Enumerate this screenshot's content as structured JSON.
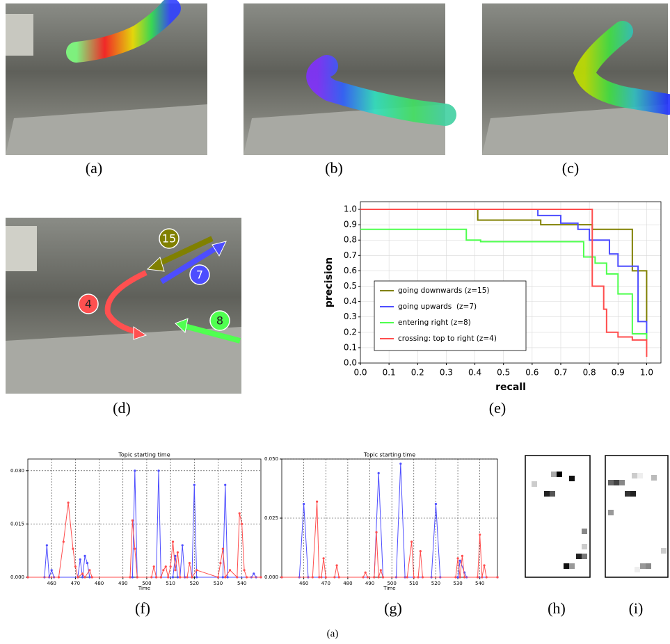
{
  "labels": [
    "(a)",
    "(b)",
    "(c)",
    "(d)",
    "(e)",
    "(f)",
    "(g)",
    "(h)",
    "(i)"
  ],
  "caption": "(a)",
  "scene_annotations": [
    "15",
    "7",
    "4",
    "8"
  ],
  "chart_data": [
    {
      "type": "line",
      "step": true,
      "x_label": "recall",
      "y_label": "precision",
      "grid": true,
      "legend": "lower left",
      "xlim": [
        0,
        1.05
      ],
      "ylim": [
        0,
        1.05
      ],
      "xticks": [
        {
          "value": 0,
          "label": "0.0"
        },
        {
          "value": 0.1,
          "label": "0.1"
        },
        {
          "value": 0.2,
          "label": "0.2"
        },
        {
          "value": 0.3,
          "label": "0.3"
        },
        {
          "value": 0.4,
          "label": "0.4"
        },
        {
          "value": 0.5,
          "label": "0.5"
        },
        {
          "value": 0.6,
          "label": "0.6"
        },
        {
          "value": 0.7,
          "label": "0.7"
        },
        {
          "value": 0.8,
          "label": "0.8"
        },
        {
          "value": 0.9,
          "label": "0.9"
        },
        {
          "value": 1,
          "label": "1.0"
        }
      ],
      "yticks": [
        {
          "value": 0,
          "label": "0.0"
        },
        {
          "value": 0.1,
          "label": "0.1"
        },
        {
          "value": 0.2,
          "label": "0.2"
        },
        {
          "value": 0.3,
          "label": "0.3"
        },
        {
          "value": 0.4,
          "label": "0.4"
        },
        {
          "value": 0.5,
          "label": "0.5"
        },
        {
          "value": 0.6,
          "label": "0.6"
        },
        {
          "value": 0.7,
          "label": "0.7"
        },
        {
          "value": 0.8,
          "label": "0.8"
        },
        {
          "value": 0.9,
          "label": "0.9"
        },
        {
          "value": 1,
          "label": "1.0"
        }
      ],
      "series": [
        {
          "name": "going downwards (z=15)",
          "color": "#808000",
          "x": [
            0.04,
            0.41,
            0.63,
            0.81,
            0.95,
            1.0
          ],
          "values": [
            1.0,
            0.93,
            0.9,
            0.87,
            0.6,
            0.27
          ]
        },
        {
          "name": "going upwards  (z=7)",
          "color": "#4d4dff",
          "x": [
            0.04,
            0.62,
            0.7,
            0.76,
            0.8,
            0.87,
            0.9,
            0.97,
            1.0
          ],
          "values": [
            1.0,
            0.96,
            0.91,
            0.87,
            0.8,
            0.71,
            0.63,
            0.27,
            0.15
          ]
        },
        {
          "name": "entering right (z=8)",
          "color": "#4dff4d",
          "x": [
            0,
            0.37,
            0.42,
            0.78,
            0.82,
            0.86,
            0.9,
            0.95,
            1.0
          ],
          "values": [
            0.87,
            0.8,
            0.79,
            0.69,
            0.65,
            0.58,
            0.45,
            0.19,
            0.15
          ]
        },
        {
          "name": "crossing: top to right (z=4)",
          "color": "#ff4d4d",
          "x": [
            0,
            0.81,
            0.85,
            0.86,
            0.9,
            0.95,
            1.0
          ],
          "values": [
            1.0,
            0.5,
            0.35,
            0.2,
            0.17,
            0.15,
            0.04
          ]
        }
      ]
    },
    {
      "type": "line",
      "title": "Topic starting time",
      "x_label": "Time",
      "grid": true,
      "markers": true,
      "xlim": [
        450,
        548
      ],
      "ylim": [
        0,
        0.0333
      ],
      "xticks": [
        460,
        470,
        480,
        490,
        500,
        510,
        520,
        530,
        540
      ],
      "yticks": [
        {
          "value": 0,
          "label": "0.000"
        },
        {
          "value": 0.015,
          "label": "0.015"
        },
        {
          "value": 0.03,
          "label": "0.030"
        }
      ],
      "series": [
        {
          "color": "#4d4dff",
          "x": [
            450,
            457,
            458,
            459,
            460,
            461,
            471,
            472,
            473,
            474,
            475,
            476,
            494,
            495,
            496,
            504,
            505,
            506,
            511,
            512,
            513,
            514,
            515,
            516,
            519,
            520,
            521,
            532,
            533,
            534,
            544,
            545,
            546,
            548
          ],
          "values": [
            0,
            0,
            0.009,
            0,
            0.002,
            0,
            0,
            0.005,
            0,
            0.006,
            0.004,
            0,
            0,
            0.03,
            0,
            0,
            0.03,
            0,
            0,
            0.006,
            0,
            0,
            0.009,
            0,
            0,
            0.026,
            0,
            0,
            0.026,
            0,
            0,
            0.001,
            0,
            0
          ]
        },
        {
          "color": "#ff4d4d",
          "x": [
            450,
            463,
            465,
            467,
            469,
            470,
            471,
            473,
            474,
            476,
            477,
            493,
            494,
            495,
            496,
            502,
            503,
            504,
            506,
            507,
            508,
            509,
            510,
            511,
            512,
            513,
            514,
            517,
            518,
            519,
            521,
            530,
            531,
            532,
            533,
            535,
            538,
            539,
            540,
            541,
            542,
            548
          ],
          "values": [
            0,
            0,
            0.01,
            0.021,
            0.008,
            0.003,
            0,
            0.001,
            0,
            0.002,
            0,
            0,
            0.016,
            0.008,
            0,
            0,
            0.003,
            0,
            0,
            0.002,
            0.003,
            0,
            0.003,
            0.01,
            0.002,
            0.007,
            0,
            0,
            0.004,
            0,
            0.002,
            0,
            0.004,
            0.008,
            0,
            0.002,
            0,
            0.018,
            0.015,
            0.002,
            0,
            0
          ]
        }
      ]
    },
    {
      "type": "line",
      "title": "Topic starting time",
      "x_label": "Time",
      "grid": true,
      "markers": true,
      "xlim": [
        450,
        548
      ],
      "ylim": [
        0,
        0.05
      ],
      "xticks": [
        460,
        470,
        480,
        490,
        500,
        510,
        520,
        530,
        540
      ],
      "yticks": [
        {
          "value": 0,
          "label": "0.000"
        },
        {
          "value": 0.025,
          "label": "0.025"
        },
        {
          "value": 0.05,
          "label": "0.050"
        }
      ],
      "series": [
        {
          "color": "#4d4dff",
          "x": [
            450,
            458,
            460,
            462,
            492,
            494,
            496,
            502,
            504,
            506,
            518,
            520,
            522,
            530,
            531,
            533,
            534,
            548
          ],
          "values": [
            0,
            0,
            0.031,
            0,
            0,
            0.044,
            0,
            0,
            0.048,
            0,
            0,
            0.031,
            0,
            0,
            0.007,
            0.002,
            0,
            0
          ]
        },
        {
          "color": "#ff4d4d",
          "x": [
            450,
            464,
            466,
            467,
            468,
            469,
            470,
            474,
            475,
            476,
            487,
            488,
            489,
            492,
            493,
            494,
            495,
            496,
            507,
            509,
            510,
            512,
            513,
            514,
            529,
            530,
            531,
            532,
            533,
            539,
            540,
            541,
            542,
            543,
            548
          ],
          "values": [
            0,
            0,
            0.032,
            0,
            0,
            0.008,
            0,
            0,
            0.005,
            0,
            0,
            0.002,
            0,
            0,
            0.019,
            0,
            0.003,
            0,
            0,
            0.015,
            0,
            0,
            0.011,
            0,
            0,
            0.008,
            0,
            0.009,
            0,
            0,
            0.018,
            0,
            0.005,
            0,
            0
          ]
        }
      ]
    }
  ]
}
